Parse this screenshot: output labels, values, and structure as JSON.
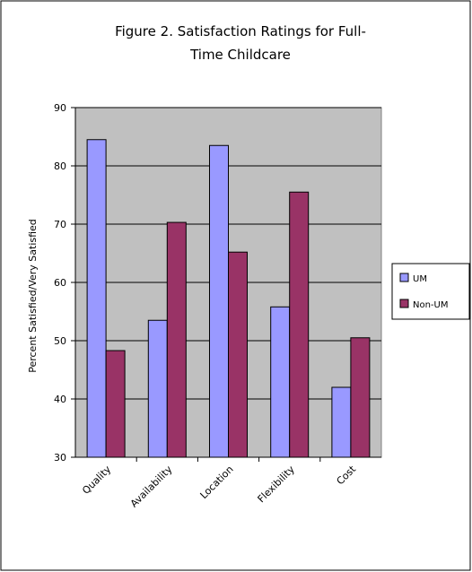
{
  "chart_data": {
    "type": "bar",
    "title_lines": [
      "Figure 2.  Satisfaction Ratings for Full-",
      "Time Childcare"
    ],
    "xlabel": "",
    "ylabel": "Percent Satisfied/Very Satisfied",
    "categories": [
      "Quality",
      "Availability",
      "Location",
      "Flexibility",
      "Cost"
    ],
    "series": [
      {
        "name": "UM",
        "values": [
          84.5,
          53.5,
          83.5,
          55.8,
          42.0
        ],
        "color": "#9999ff"
      },
      {
        "name": "Non-UM",
        "values": [
          48.3,
          70.3,
          65.2,
          75.5,
          50.5
        ],
        "color": "#993366"
      }
    ],
    "ylim": [
      30,
      90
    ],
    "yticks": [
      "30",
      "40",
      "50",
      "60",
      "70",
      "80",
      "90"
    ],
    "grid": true,
    "plot_background": "#c0c0c0",
    "legend_position": "right"
  }
}
